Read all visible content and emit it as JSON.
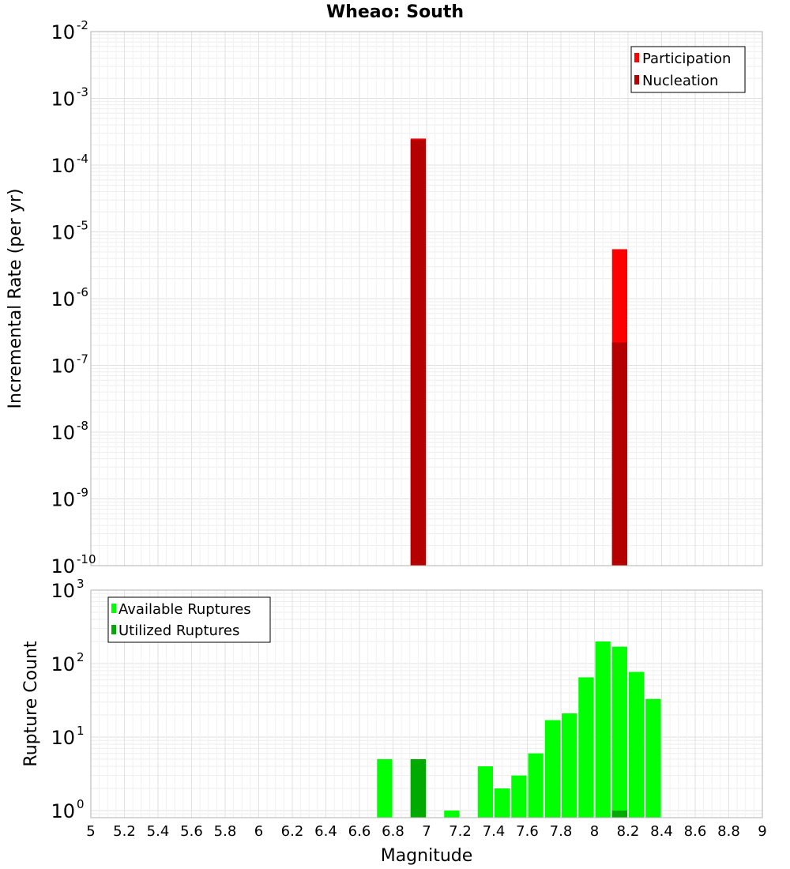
{
  "chart_data": [
    {
      "type": "bar",
      "title": "Wheao: South",
      "xlabel": "",
      "ylabel": "Incremental Rate (per yr)",
      "yscale": "log",
      "ylim": [
        1e-10,
        0.01
      ],
      "xlim": [
        5,
        9
      ],
      "grid": true,
      "legend_position": "top-right",
      "bar_width": 0.1,
      "series": [
        {
          "name": "Participation",
          "color": "#ff0000",
          "points": [
            {
              "x": 6.95,
              "y": 0.00025
            },
            {
              "x": 8.15,
              "y": 5.5e-06
            }
          ]
        },
        {
          "name": "Nucleation",
          "color": "#b40000",
          "points": [
            {
              "x": 6.95,
              "y": 0.00024
            },
            {
              "x": 8.15,
              "y": 2.2e-07
            }
          ]
        }
      ]
    },
    {
      "type": "bar",
      "title": "",
      "xlabel": "Magnitude",
      "ylabel": "Rupture Count",
      "yscale": "log",
      "ylim": [
        0.8,
        1000
      ],
      "xlim": [
        5,
        9
      ],
      "grid": true,
      "legend_position": "top-left",
      "bar_width": 0.1,
      "x_ticks": [
        "5",
        "5.2",
        "5.4",
        "5.6",
        "5.8",
        "6",
        "6.2",
        "6.4",
        "6.6",
        "6.8",
        "7",
        "7.2",
        "7.4",
        "7.6",
        "7.8",
        "8",
        "8.2",
        "8.4",
        "8.6",
        "8.8",
        "9"
      ],
      "series": [
        {
          "name": "Available Ruptures",
          "color": "#00ff00",
          "points": [
            {
              "x": 6.75,
              "y": 5
            },
            {
              "x": 6.95,
              "y": 5
            },
            {
              "x": 7.15,
              "y": 1
            },
            {
              "x": 7.35,
              "y": 4
            },
            {
              "x": 7.45,
              "y": 2
            },
            {
              "x": 7.55,
              "y": 3
            },
            {
              "x": 7.65,
              "y": 6
            },
            {
              "x": 7.75,
              "y": 17
            },
            {
              "x": 7.85,
              "y": 21
            },
            {
              "x": 7.95,
              "y": 65
            },
            {
              "x": 8.05,
              "y": 200
            },
            {
              "x": 8.15,
              "y": 170
            },
            {
              "x": 8.25,
              "y": 77
            },
            {
              "x": 8.35,
              "y": 33
            }
          ]
        },
        {
          "name": "Utilized Ruptures",
          "color": "#00aa00",
          "points": [
            {
              "x": 6.95,
              "y": 5
            },
            {
              "x": 8.15,
              "y": 1
            }
          ]
        }
      ]
    }
  ],
  "top_axis": {
    "ticks": [
      {
        "base": "10",
        "exp": "-10"
      },
      {
        "base": "10",
        "exp": "-9"
      },
      {
        "base": "10",
        "exp": "-8"
      },
      {
        "base": "10",
        "exp": "-7"
      },
      {
        "base": "10",
        "exp": "-6"
      },
      {
        "base": "10",
        "exp": "-5"
      },
      {
        "base": "10",
        "exp": "-4"
      },
      {
        "base": "10",
        "exp": "-3"
      },
      {
        "base": "10",
        "exp": "-2"
      }
    ]
  },
  "bottom_axis": {
    "ticks": [
      {
        "base": "10",
        "exp": "0"
      },
      {
        "base": "10",
        "exp": "1"
      },
      {
        "base": "10",
        "exp": "2"
      },
      {
        "base": "10",
        "exp": "3"
      }
    ]
  }
}
